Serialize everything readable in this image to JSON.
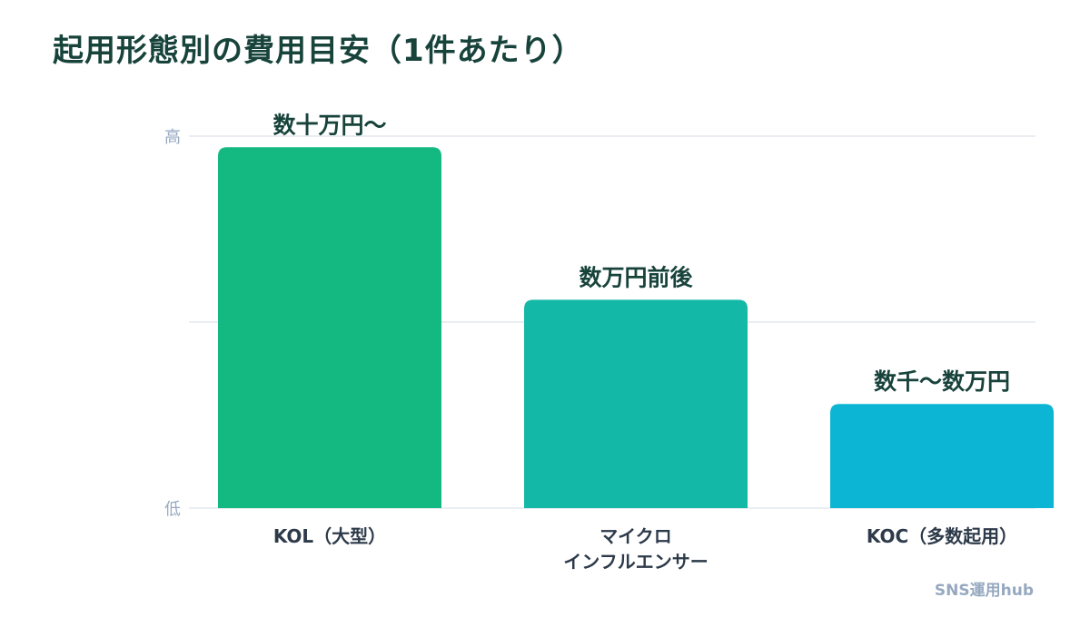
{
  "title": "起用形態別の費用目安（1件あたり）",
  "source": "SNS運用hub",
  "colors": {
    "title": "#17433b",
    "value_label": "#17433b",
    "category_label": "#2d3a4a",
    "axis_label": "#97a9c0",
    "grid": "#e3e8ee",
    "source": "#97a9c0"
  },
  "chart_data": {
    "type": "bar",
    "title": "起用形態別の費用目安（1件あたり）",
    "categories": [
      "KOL（大型）",
      "マイクロ\nインフルエンサー",
      "KOC（多数起用）"
    ],
    "values": [
      97,
      56,
      28
    ],
    "value_labels": [
      "数十万円〜",
      "数万円前後",
      "数千〜数万円"
    ],
    "bar_colors": [
      "#13b981",
      "#14b8a7",
      "#0bb5d3"
    ],
    "ylim": [
      0,
      100
    ],
    "y_tick_labels": [
      {
        "value": 100,
        "label": "高"
      },
      {
        "value": 0,
        "label": "低"
      }
    ],
    "grid": true
  }
}
